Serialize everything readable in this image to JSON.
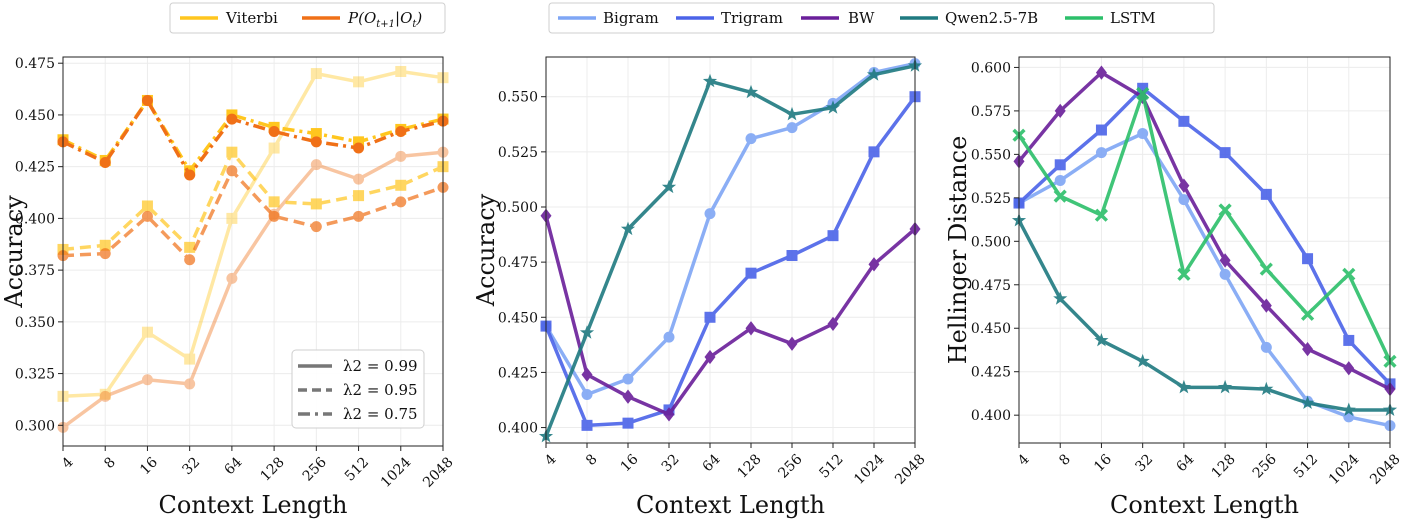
{
  "legend_left": {
    "entries": [
      {
        "label": "Viterbi",
        "color": "#FFC61E"
      },
      {
        "label": "P(O_{t+1}|O_t)",
        "display": "P(Ot+1|Ot)",
        "color": "#F07017"
      }
    ]
  },
  "legend_mid": {
    "entries": [
      {
        "label": "Bigram",
        "color": "#7FA6F5"
      },
      {
        "label": "Trigram",
        "color": "#4B63E8"
      },
      {
        "label": "BW",
        "color": "#6A1F9A"
      },
      {
        "label": "Qwen2.5-7B",
        "color": "#1F7A80"
      },
      {
        "label": "LSTM",
        "color": "#2CBF6A"
      }
    ]
  },
  "style_legend": {
    "entries": [
      {
        "label": "λ2 = 0.99",
        "dash": "solid"
      },
      {
        "label": "λ2 = 0.95",
        "dash": "dashed"
      },
      {
        "label": "λ2 = 0.75",
        "dash": "dashdot"
      }
    ]
  },
  "chart_data": [
    {
      "type": "line",
      "x": [
        "4",
        "8",
        "16",
        "32",
        "64",
        "128",
        "256",
        "512",
        "1024",
        "2048"
      ],
      "xlabel": "Context Length",
      "ylabel": "Accuracy",
      "ylim": [
        0.29,
        0.478
      ],
      "yticks": [
        "0.300",
        "0.325",
        "0.350",
        "0.375",
        "0.400",
        "0.425",
        "0.450",
        "0.475"
      ],
      "series": [
        {
          "name": "Viterbi (λ2=0.99)",
          "color": "#FFC61E",
          "alpha": 0.4,
          "dash": "solid",
          "marker": "square",
          "values": [
            0.314,
            0.315,
            0.345,
            0.332,
            0.4,
            0.434,
            0.47,
            0.466,
            0.471,
            0.468
          ]
        },
        {
          "name": "P(O_{t+1}|O_t) (λ2=0.99)",
          "color": "#F07017",
          "alpha": 0.4,
          "dash": "solid",
          "marker": "circle",
          "values": [
            0.299,
            0.314,
            0.322,
            0.32,
            0.371,
            0.402,
            0.426,
            0.419,
            0.43,
            0.432
          ]
        },
        {
          "name": "Viterbi (λ2=0.95)",
          "color": "#FFC61E",
          "alpha": 0.7,
          "dash": "dashed",
          "marker": "square",
          "values": [
            0.385,
            0.387,
            0.406,
            0.386,
            0.432,
            0.408,
            0.407,
            0.411,
            0.416,
            0.425
          ]
        },
        {
          "name": "P(O_{t+1}|O_t) (λ2=0.95)",
          "color": "#F07017",
          "alpha": 0.7,
          "dash": "dashed",
          "marker": "circle",
          "values": [
            0.382,
            0.383,
            0.401,
            0.38,
            0.423,
            0.401,
            0.396,
            0.401,
            0.408,
            0.415
          ]
        },
        {
          "name": "Viterbi (λ2=0.75)",
          "color": "#FFC61E",
          "alpha": 1.0,
          "dash": "dashdot",
          "marker": "square",
          "values": [
            0.438,
            0.428,
            0.457,
            0.423,
            0.45,
            0.444,
            0.441,
            0.437,
            0.443,
            0.448
          ]
        },
        {
          "name": "P(O_{t+1}|O_t) (λ2=0.75)",
          "color": "#F07017",
          "alpha": 1.0,
          "dash": "dashdot",
          "marker": "circle",
          "values": [
            0.437,
            0.427,
            0.457,
            0.421,
            0.448,
            0.442,
            0.437,
            0.434,
            0.442,
            0.447
          ]
        }
      ]
    },
    {
      "type": "line",
      "x": [
        "4",
        "8",
        "16",
        "32",
        "64",
        "128",
        "256",
        "512",
        "1024",
        "2048"
      ],
      "xlabel": "Context Length",
      "ylabel": "Accuracy",
      "ylim": [
        0.393,
        0.568
      ],
      "yticks": [
        "0.400",
        "0.425",
        "0.450",
        "0.475",
        "0.500",
        "0.525",
        "0.550"
      ],
      "series": [
        {
          "name": "Bigram",
          "color": "#7FA6F5",
          "marker": "circle",
          "values": [
            0.446,
            0.415,
            0.422,
            0.441,
            0.497,
            0.531,
            0.536,
            0.547,
            0.561,
            0.565
          ]
        },
        {
          "name": "Trigram",
          "color": "#4B63E8",
          "marker": "square",
          "values": [
            0.446,
            0.401,
            0.402,
            0.408,
            0.45,
            0.47,
            0.478,
            0.487,
            0.525,
            0.55
          ]
        },
        {
          "name": "BW",
          "color": "#6A1F9A",
          "marker": "diamond",
          "values": [
            0.496,
            0.424,
            0.414,
            0.406,
            0.432,
            0.445,
            0.438,
            0.447,
            0.474,
            0.49
          ]
        },
        {
          "name": "Qwen2.5-7B",
          "color": "#1F7A80",
          "marker": "star",
          "values": [
            0.396,
            0.443,
            0.49,
            0.509,
            0.557,
            0.552,
            0.542,
            0.545,
            0.56,
            0.564
          ]
        }
      ]
    },
    {
      "type": "line",
      "x": [
        "4",
        "8",
        "16",
        "32",
        "64",
        "128",
        "256",
        "512",
        "1024",
        "2048"
      ],
      "xlabel": "Context Length",
      "ylabel": "Hellinger Distance",
      "ylim": [
        0.384,
        0.606
      ],
      "yticks": [
        "0.400",
        "0.425",
        "0.450",
        "0.475",
        "0.500",
        "0.525",
        "0.550",
        "0.575",
        "0.600"
      ],
      "series": [
        {
          "name": "Bigram",
          "color": "#7FA6F5",
          "marker": "circle",
          "values": [
            0.522,
            0.535,
            0.551,
            0.562,
            0.524,
            0.481,
            0.439,
            0.408,
            0.399,
            0.394
          ]
        },
        {
          "name": "Trigram",
          "color": "#4B63E8",
          "marker": "square",
          "values": [
            0.522,
            0.544,
            0.564,
            0.588,
            0.569,
            0.551,
            0.527,
            0.49,
            0.443,
            0.418
          ]
        },
        {
          "name": "BW",
          "color": "#6A1F9A",
          "marker": "diamond",
          "values": [
            0.546,
            0.575,
            0.597,
            0.583,
            0.532,
            0.489,
            0.463,
            0.438,
            0.427,
            0.415
          ]
        },
        {
          "name": "Qwen2.5-7B",
          "color": "#1F7A80",
          "marker": "star",
          "values": [
            0.512,
            0.467,
            0.443,
            0.431,
            0.416,
            0.416,
            0.415,
            0.407,
            0.403,
            0.403
          ]
        },
        {
          "name": "LSTM",
          "color": "#2CBF6A",
          "marker": "x",
          "values": [
            0.561,
            0.526,
            0.515,
            0.585,
            0.481,
            0.518,
            0.484,
            0.458,
            0.481,
            0.431
          ]
        }
      ]
    }
  ]
}
